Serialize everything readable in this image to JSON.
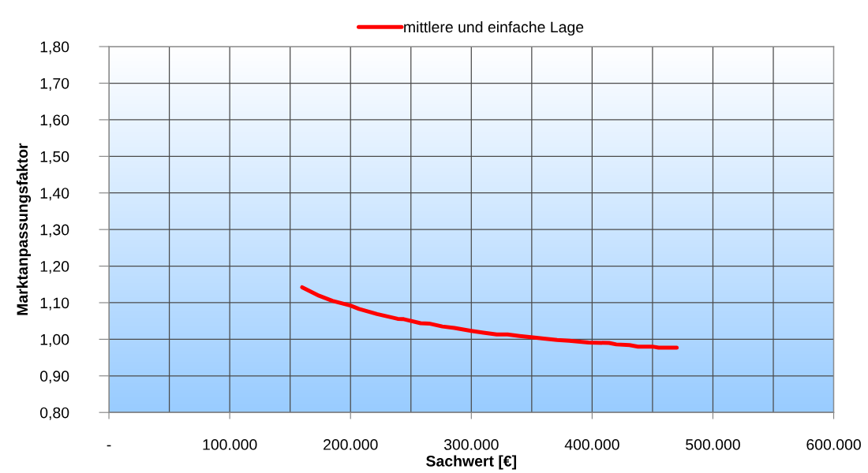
{
  "chart_data": {
    "type": "line",
    "xlabel": "Sachwert [€]",
    "ylabel": "Marktanpassungsfaktor",
    "series": [
      {
        "name": "mittlere und einfache Lage",
        "color": "#ff0000",
        "x": [
          160000,
          174000,
          185000,
          200000,
          207000,
          222000,
          239000,
          244000,
          258000,
          265000,
          276000,
          286000,
          300000,
          310000,
          321000,
          330000,
          340000,
          351000,
          360000,
          371000,
          381000,
          397000,
          414000,
          420000,
          431000,
          438000,
          450000,
          455000,
          470000
        ],
        "values": [
          1.142,
          1.119,
          1.105,
          1.092,
          1.083,
          1.069,
          1.056,
          1.055,
          1.044,
          1.043,
          1.035,
          1.031,
          1.023,
          1.018,
          1.013,
          1.013,
          1.009,
          1.005,
          1.002,
          0.998,
          0.996,
          0.991,
          0.99,
          0.986,
          0.984,
          0.98,
          0.98,
          0.977,
          0.977
        ]
      }
    ],
    "xlim": [
      0,
      600000
    ],
    "xticks": [
      {
        "value": 0,
        "label": "-"
      },
      {
        "value": 50000,
        "label": null
      },
      {
        "value": 100000,
        "label": "100.000"
      },
      {
        "value": 150000,
        "label": null
      },
      {
        "value": 200000,
        "label": "200.000"
      },
      {
        "value": 250000,
        "label": null
      },
      {
        "value": 300000,
        "label": "300.000"
      },
      {
        "value": 350000,
        "label": null
      },
      {
        "value": 400000,
        "label": "400.000"
      },
      {
        "value": 450000,
        "label": null
      },
      {
        "value": 500000,
        "label": "500.000"
      },
      {
        "value": 550000,
        "label": null
      },
      {
        "value": 600000,
        "label": "600.000"
      }
    ],
    "ylim": [
      0.8,
      1.8
    ],
    "yticks": [
      {
        "value": 0.8,
        "label": "0,80"
      },
      {
        "value": 0.9,
        "label": "0,90"
      },
      {
        "value": 1.0,
        "label": "1,00"
      },
      {
        "value": 1.1,
        "label": "1,10"
      },
      {
        "value": 1.2,
        "label": "1,20"
      },
      {
        "value": 1.3,
        "label": "1,30"
      },
      {
        "value": 1.4,
        "label": "1,40"
      },
      {
        "value": 1.5,
        "label": "1,50"
      },
      {
        "value": 1.6,
        "label": "1,60"
      },
      {
        "value": 1.7,
        "label": "1,70"
      },
      {
        "value": 1.8,
        "label": "1,80"
      }
    ],
    "grid": true,
    "legend": "top",
    "marker": "none",
    "line_style": "solid"
  }
}
